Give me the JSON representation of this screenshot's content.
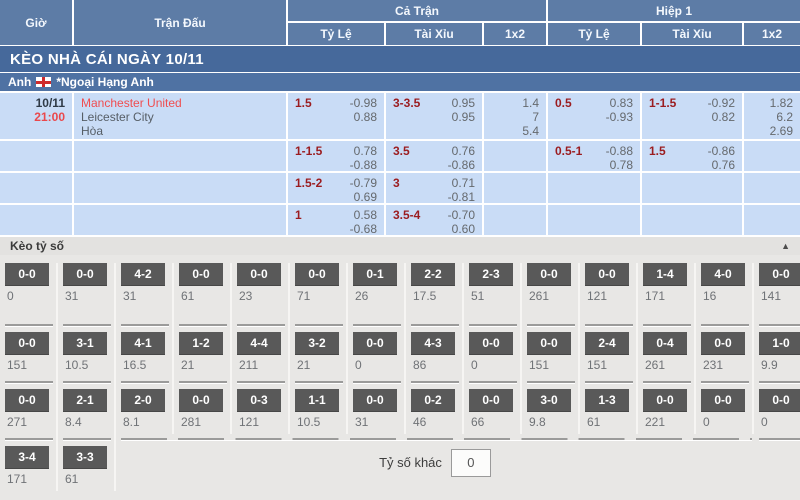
{
  "header": {
    "col_time": "Giờ",
    "col_match": "Trận Đấu",
    "group_full": "Cả Trận",
    "group_half": "Hiệp 1",
    "sub_handicap": "Tỷ Lệ",
    "sub_overunder": "Tài Xỉu",
    "sub_1x2": "1x2"
  },
  "section_title": "KÈO NHÀ CÁI NGÀY 10/11",
  "league": {
    "country": "Anh",
    "name": "*Ngoại Hạng Anh"
  },
  "match": {
    "date": "10/11",
    "time": "21:00",
    "home": "Manchester United",
    "away": "Leicester City",
    "draw": "Hòa"
  },
  "odds_rows": [
    {
      "ft_hdp": "1.5",
      "ft_hdp_odds": [
        "-0.98",
        "0.88"
      ],
      "ft_ou": "3-3.5",
      "ft_ou_odds": [
        "0.95",
        "0.95"
      ],
      "ft_1x2": [
        "1.4",
        "7",
        "5.4"
      ],
      "h1_hdp": "0.5",
      "h1_hdp_odds": [
        "0.83",
        "-0.93"
      ],
      "h1_ou": "1-1.5",
      "h1_ou_odds": [
        "-0.92",
        "0.82"
      ],
      "h1_1x2": [
        "1.82",
        "6.2",
        "2.69"
      ]
    },
    {
      "ft_hdp": "1-1.5",
      "ft_hdp_odds": [
        "0.78",
        "-0.88"
      ],
      "ft_ou": "3.5",
      "ft_ou_odds": [
        "0.76",
        "-0.86"
      ],
      "ft_1x2": [],
      "h1_hdp": "0.5-1",
      "h1_hdp_odds": [
        "-0.88",
        "0.78"
      ],
      "h1_ou": "1.5",
      "h1_ou_odds": [
        "-0.86",
        "0.76"
      ],
      "h1_1x2": []
    },
    {
      "ft_hdp": "1.5-2",
      "ft_hdp_odds": [
        "-0.79",
        "0.69"
      ],
      "ft_ou": "3",
      "ft_ou_odds": [
        "0.71",
        "-0.81"
      ],
      "ft_1x2": [],
      "h1_hdp": "",
      "h1_hdp_odds": [],
      "h1_ou": "",
      "h1_ou_odds": [],
      "h1_1x2": []
    },
    {
      "ft_hdp": "1",
      "ft_hdp_odds": [
        "0.58",
        "-0.68"
      ],
      "ft_ou": "3.5-4",
      "ft_ou_odds": [
        "-0.70",
        "0.60"
      ],
      "ft_1x2": [],
      "h1_hdp": "",
      "h1_hdp_odds": [],
      "h1_ou": "",
      "h1_ou_odds": [],
      "h1_1x2": []
    }
  ],
  "score_section": {
    "title": "Kèo tỷ số",
    "collapse_icon": "▲",
    "rows": [
      [
        {
          "score": "0-0",
          "odds": "0"
        },
        {
          "score": "0-0",
          "odds": "31"
        },
        {
          "score": "4-2",
          "odds": "31"
        },
        {
          "score": "0-0",
          "odds": "61"
        },
        {
          "score": "0-0",
          "odds": "23"
        },
        {
          "score": "0-0",
          "odds": "71"
        },
        {
          "score": "0-1",
          "odds": "26"
        },
        {
          "score": "2-2",
          "odds": "17.5"
        },
        {
          "score": "2-3",
          "odds": "51"
        },
        {
          "score": "0-0",
          "odds": "261"
        },
        {
          "score": "0-0",
          "odds": "121"
        },
        {
          "score": "1-4",
          "odds": "171"
        },
        {
          "score": "4-0",
          "odds": "16"
        },
        {
          "score": "0-0",
          "odds": "141"
        }
      ],
      [
        {
          "score": "0-0",
          "odds": "151"
        },
        {
          "score": "3-1",
          "odds": "10.5"
        },
        {
          "score": "4-1",
          "odds": "16.5"
        },
        {
          "score": "1-2",
          "odds": "21"
        },
        {
          "score": "4-4",
          "odds": "211"
        },
        {
          "score": "3-2",
          "odds": "21"
        },
        {
          "score": "0-0",
          "odds": "0"
        },
        {
          "score": "4-3",
          "odds": "86"
        },
        {
          "score": "0-0",
          "odds": "0"
        },
        {
          "score": "0-0",
          "odds": "151"
        },
        {
          "score": "2-4",
          "odds": "151"
        },
        {
          "score": "0-4",
          "odds": "261"
        },
        {
          "score": "0-0",
          "odds": "231"
        },
        {
          "score": "1-0",
          "odds": "9.9"
        }
      ],
      [
        {
          "score": "0-0",
          "odds": "271"
        },
        {
          "score": "2-1",
          "odds": "8.4"
        },
        {
          "score": "2-0",
          "odds": "8.1"
        },
        {
          "score": "0-0",
          "odds": "281"
        },
        {
          "score": "0-3",
          "odds": "121"
        },
        {
          "score": "1-1",
          "odds": "10.5"
        },
        {
          "score": "0-0",
          "odds": "31"
        },
        {
          "score": "0-2",
          "odds": "46"
        },
        {
          "score": "0-0",
          "odds": "66"
        },
        {
          "score": "3-0",
          "odds": "9.8"
        },
        {
          "score": "1-3",
          "odds": "61"
        },
        {
          "score": "0-0",
          "odds": "221"
        },
        {
          "score": "0-0",
          "odds": "0"
        },
        {
          "score": "0-0",
          "odds": "0"
        }
      ],
      [
        {
          "score": "3-4",
          "odds": "171"
        },
        {
          "score": "3-3",
          "odds": "61"
        }
      ]
    ],
    "other_label": "Tỷ số khác",
    "other_value": "0"
  },
  "colors": {
    "header_blue": "#5d7ca6",
    "band_blue": "#46699b",
    "league_blue": "#4f72a3",
    "row_blue": "#c9dcf6",
    "handicap_red": "#9b1c1f",
    "team_red": "#f04d50",
    "score_button_gray": "#595959",
    "section_gray": "#e8e7e5"
  }
}
